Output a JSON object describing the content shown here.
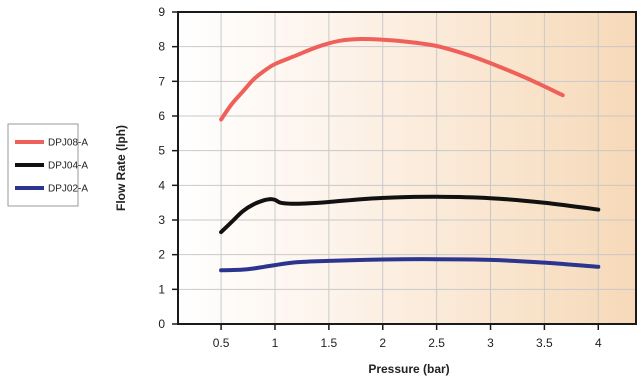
{
  "chart_data": {
    "type": "line",
    "title": "",
    "xlabel": "Pressure (bar)",
    "ylabel": "Flow Rate (lph)",
    "xlim": [
      0.1,
      4.35
    ],
    "ylim": [
      0,
      9
    ],
    "x_ticks": [
      "0.5",
      "1",
      "1.5",
      "2",
      "2.5",
      "3",
      "3.5",
      "4"
    ],
    "y_ticks": [
      "0",
      "1",
      "2",
      "3",
      "4",
      "5",
      "6",
      "7",
      "8",
      "9"
    ],
    "grid": true,
    "legend_position": "left",
    "background": "gradient white to peach",
    "series": [
      {
        "name": "DPJ08-A",
        "color": "#f0605a",
        "x": [
          0.5,
          0.6,
          0.7,
          0.8,
          0.9,
          1.0,
          1.2,
          1.4,
          1.6,
          1.8,
          2.0,
          2.2,
          2.5,
          2.8,
          3.1,
          3.4,
          3.67
        ],
        "y": [
          5.9,
          6.35,
          6.7,
          7.05,
          7.3,
          7.5,
          7.75,
          8.0,
          8.17,
          8.22,
          8.2,
          8.15,
          8.02,
          7.75,
          7.4,
          7.0,
          6.6
        ]
      },
      {
        "name": "DPJ04-A",
        "color": "#111111",
        "x": [
          0.5,
          0.6,
          0.7,
          0.8,
          0.9,
          0.95,
          1.0,
          1.05,
          1.15,
          1.3,
          1.5,
          1.8,
          2.1,
          2.5,
          3.0,
          3.5,
          4.0
        ],
        "y": [
          2.65,
          2.95,
          3.25,
          3.45,
          3.57,
          3.6,
          3.58,
          3.5,
          3.47,
          3.48,
          3.52,
          3.6,
          3.65,
          3.67,
          3.63,
          3.5,
          3.3
        ]
      },
      {
        "name": "DPJ02-A",
        "color": "#2b3590",
        "x": [
          0.5,
          0.7,
          0.8,
          0.9,
          1.0,
          1.2,
          1.5,
          2.0,
          2.5,
          3.0,
          3.5,
          4.0
        ],
        "y": [
          1.55,
          1.57,
          1.6,
          1.65,
          1.7,
          1.78,
          1.82,
          1.86,
          1.87,
          1.85,
          1.77,
          1.65
        ]
      }
    ]
  }
}
